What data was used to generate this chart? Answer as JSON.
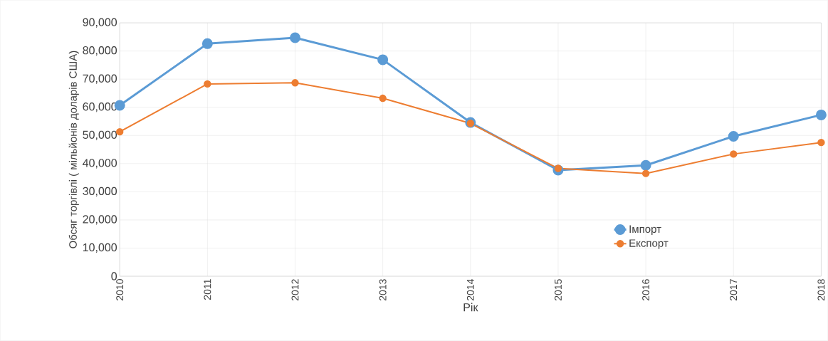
{
  "chart_data": {
    "type": "line",
    "xlabel": "Рік",
    "ylabel": "Обсяг торгівлі ( мільйонів доларів США)",
    "categories": [
      "2010",
      "2011",
      "2012",
      "2013",
      "2014",
      "2015",
      "2016",
      "2017",
      "2018"
    ],
    "series": [
      {
        "name": "Імпорт",
        "color": "#5b9bd5",
        "values": [
          60700,
          82600,
          84700,
          76900,
          54600,
          37700,
          39400,
          49700,
          57300
        ]
      },
      {
        "name": "Експорт",
        "color": "#ed7d31",
        "values": [
          51300,
          68300,
          68700,
          63200,
          54300,
          38300,
          36500,
          43400,
          47500
        ]
      }
    ],
    "ylim": [
      0,
      90000
    ],
    "yticks": [
      0,
      {
        "value": 10000,
        "label": "10,000"
      },
      {
        "value": 20000,
        "label": "20,000"
      },
      {
        "value": 30000,
        "label": "30,000"
      },
      {
        "value": 40000,
        "label": "40,000"
      },
      {
        "value": 50000,
        "label": "50,000"
      },
      {
        "value": 60000,
        "label": "60,000"
      },
      {
        "value": 70000,
        "label": "70,000"
      },
      {
        "value": 80000,
        "label": "80,000"
      },
      {
        "value": 90000,
        "label": "90,000"
      }
    ],
    "grid": true,
    "legend": "bottom right",
    "marker": "circle",
    "line_style": "solid"
  }
}
